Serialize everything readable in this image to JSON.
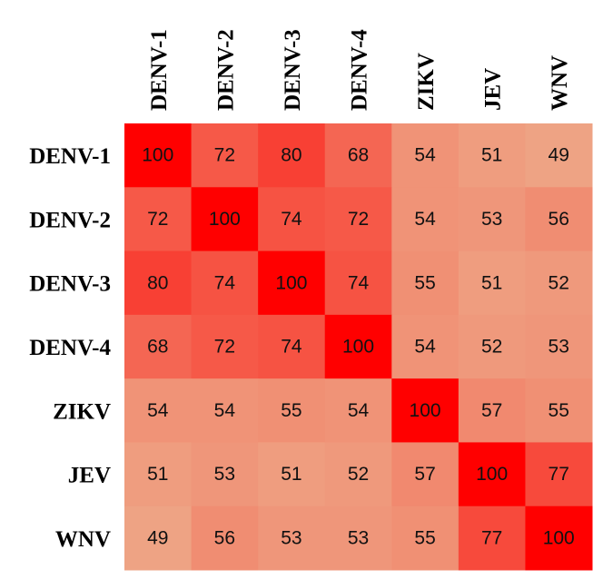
{
  "chart_data": {
    "type": "heatmap",
    "x_categories": [
      "DENV-1",
      "DENV-2",
      "DENV-3",
      "DENV-4",
      "ZIKV",
      "JEV",
      "WNV"
    ],
    "y_categories": [
      "DENV-1",
      "DENV-2",
      "DENV-3",
      "DENV-4",
      "ZIKV",
      "JEV",
      "WNV"
    ],
    "values": [
      [
        100,
        72,
        80,
        68,
        54,
        51,
        49
      ],
      [
        72,
        100,
        74,
        72,
        54,
        53,
        56
      ],
      [
        80,
        74,
        100,
        74,
        55,
        51,
        52
      ],
      [
        68,
        72,
        74,
        100,
        54,
        52,
        53
      ],
      [
        54,
        54,
        55,
        54,
        100,
        57,
        55
      ],
      [
        51,
        53,
        51,
        52,
        57,
        100,
        77
      ],
      [
        49,
        56,
        53,
        53,
        55,
        77,
        100
      ]
    ],
    "colormap": [
      "#eea384",
      "#ff0000"
    ]
  }
}
